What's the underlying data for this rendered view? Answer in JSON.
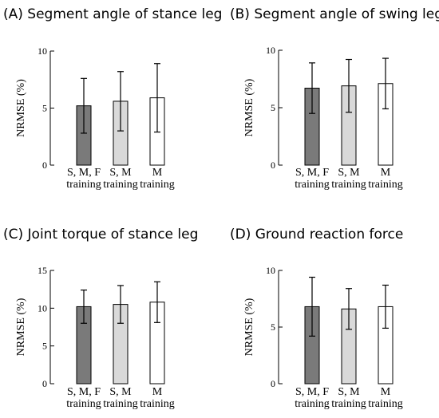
{
  "chart_data": [
    {
      "type": "bar",
      "title": "(A) Segment angle of stance leg",
      "ylabel": "NRMSE (%)",
      "xlabel": "",
      "ylim": [
        0,
        10
      ],
      "yticks": [
        0,
        5,
        10
      ],
      "categories": [
        [
          "S, M, F",
          "training"
        ],
        [
          "S, M",
          "training"
        ],
        [
          "M",
          "training"
        ]
      ],
      "values": [
        5.2,
        5.6,
        5.9
      ],
      "error": [
        2.4,
        2.6,
        3.0
      ],
      "bar_colors": [
        "#7a7a7a",
        "#d9d9d9",
        "#ffffff"
      ]
    },
    {
      "type": "bar",
      "title": "(B) Segment angle of swing leg",
      "ylabel": "NRMSE (%)",
      "xlabel": "",
      "ylim": [
        0,
        10
      ],
      "yticks": [
        0,
        5,
        10
      ],
      "categories": [
        [
          "S, M, F",
          "training"
        ],
        [
          "S, M",
          "training"
        ],
        [
          "M",
          "training"
        ]
      ],
      "values": [
        6.7,
        6.9,
        7.1
      ],
      "error": [
        2.2,
        2.3,
        2.2
      ],
      "bar_colors": [
        "#7a7a7a",
        "#d9d9d9",
        "#ffffff"
      ]
    },
    {
      "type": "bar",
      "title": "(C) Joint torque of stance leg",
      "ylabel": "NRMSE (%)",
      "xlabel": "",
      "ylim": [
        0,
        15
      ],
      "yticks": [
        0,
        5,
        10,
        15
      ],
      "categories": [
        [
          "S, M, F",
          "training"
        ],
        [
          "S, M",
          "training"
        ],
        [
          "M",
          "training"
        ]
      ],
      "values": [
        10.2,
        10.5,
        10.8
      ],
      "error": [
        2.2,
        2.5,
        2.7
      ],
      "bar_colors": [
        "#7a7a7a",
        "#d9d9d9",
        "#ffffff"
      ]
    },
    {
      "type": "bar",
      "title": "(D) Ground reaction force",
      "ylabel": "NRMSE (%)",
      "xlabel": "",
      "ylim": [
        0,
        10
      ],
      "yticks": [
        0,
        5,
        10
      ],
      "categories": [
        [
          "S, M, F",
          "training"
        ],
        [
          "S, M",
          "training"
        ],
        [
          "M",
          "training"
        ]
      ],
      "values": [
        6.8,
        6.6,
        6.8
      ],
      "error": [
        2.6,
        1.8,
        1.9
      ],
      "bar_colors": [
        "#7a7a7a",
        "#d9d9d9",
        "#ffffff"
      ]
    }
  ]
}
